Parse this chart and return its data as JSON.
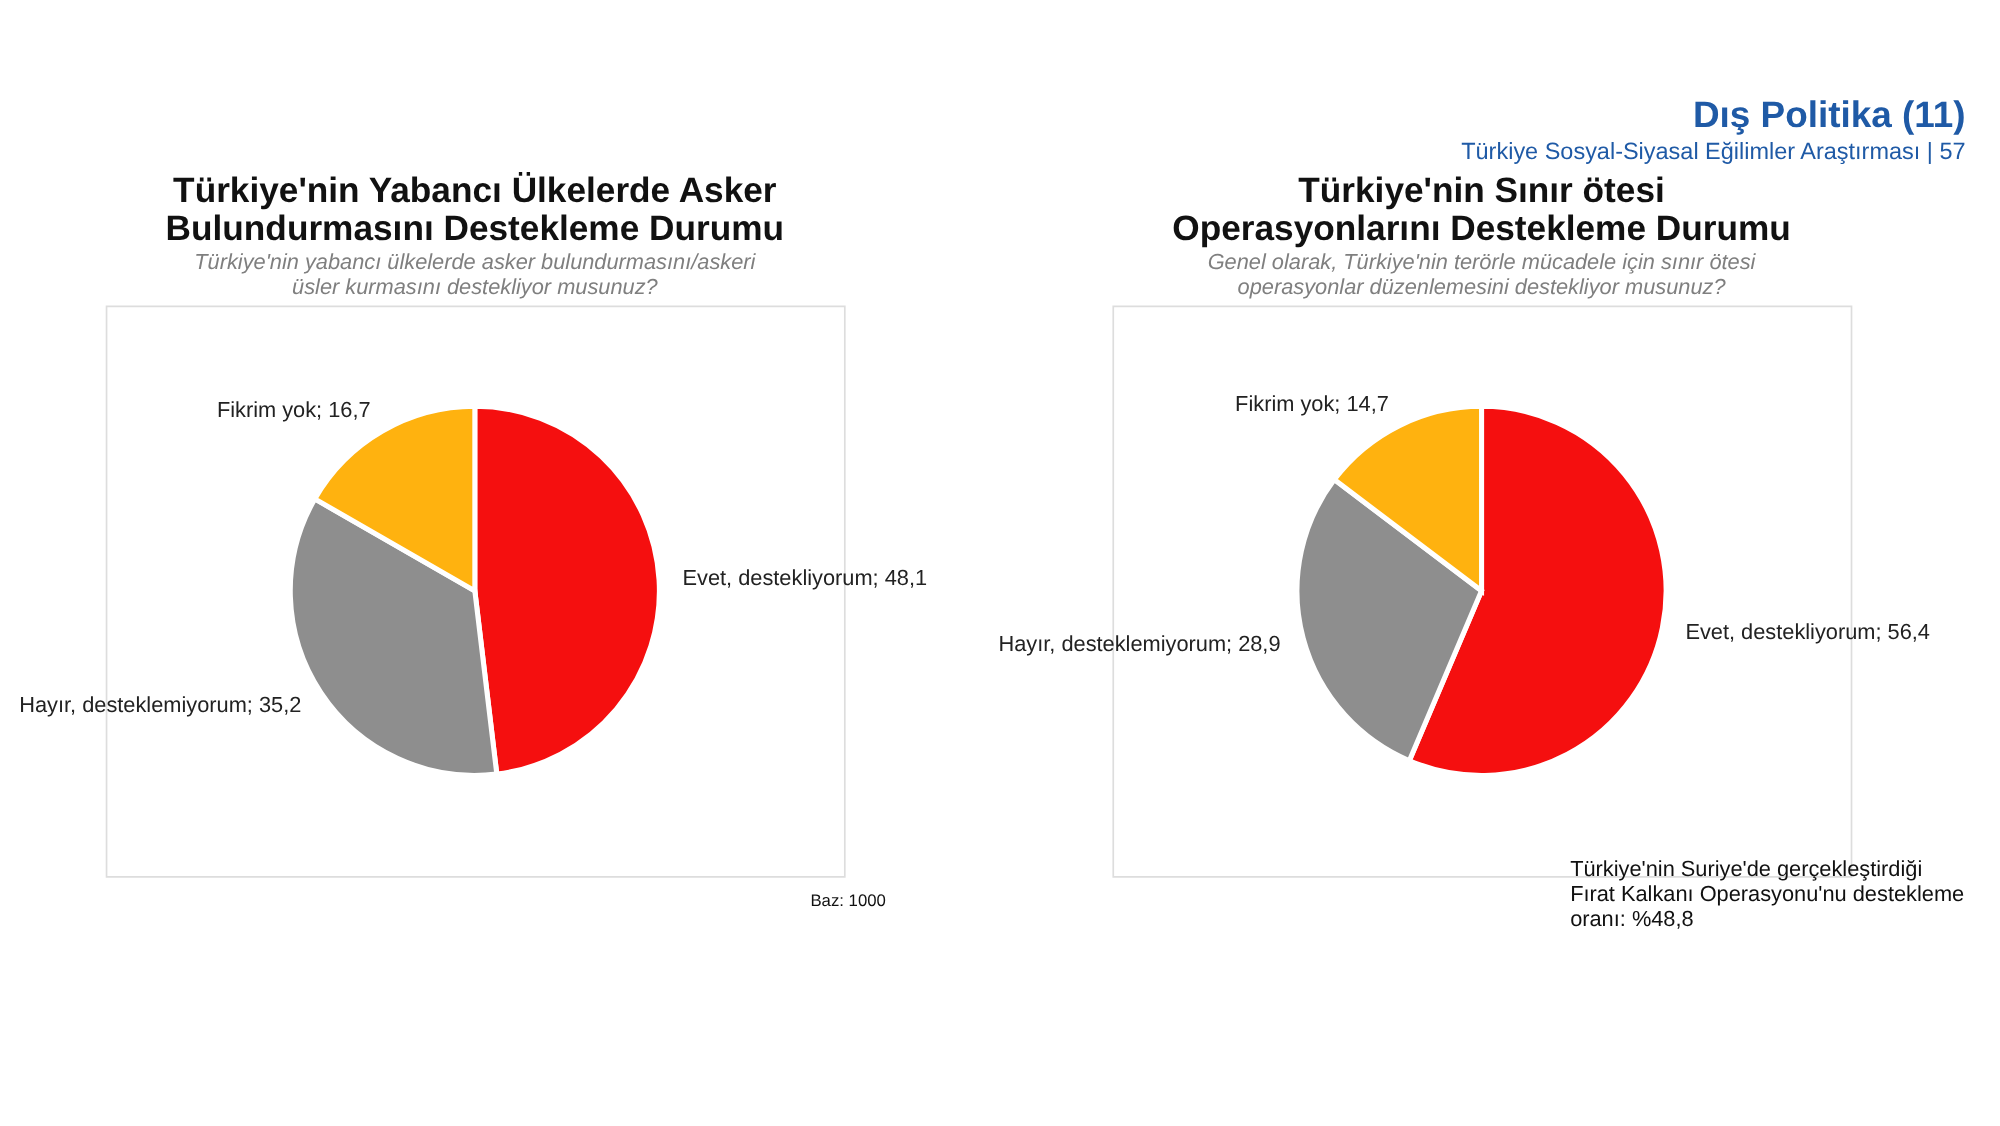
{
  "chart_data": [
    {
      "type": "pie",
      "title": "Türkiye'nin Yabancı Ülkelerde Asker Bulundurmasını Destekleme Durumu",
      "subtitle": "Türkiye'nin yabancı ülkelerde asker bulundurmasını/askeri üsler kurmasını destekliyor musunuz?",
      "categories": [
        "Evet, destekliyorum",
        "Hayır, desteklemiyorum",
        "Fikrim yok"
      ],
      "values": [
        48.1,
        35.2,
        16.7
      ],
      "value_labels": [
        "48,1",
        "35,2",
        "16,7"
      ],
      "colors": [
        "#f50f0f",
        "#8e8e8e",
        "#ffb20f"
      ],
      "annotations": [
        "Türkiye Sosyal-Siyasal Eğilimler Araştırması | 57",
        "Dış Politika (11)",
        "Baz: 1000"
      ]
    },
    {
      "type": "pie",
      "title": "Türkiye'nin Sınır ötesi Operasyonlarını Destekleme Durumu",
      "subtitle": "Genel olarak, Türkiye'nin terörle mücadele için sınır ötesi operasyonlar düzenlemesini destekliyor musunuz?",
      "categories": [
        "Evet, destekliyorum",
        "Hayır, desteklemiyorum",
        "Fikrim yok"
      ],
      "values": [
        56.4,
        28.9,
        14.7
      ],
      "value_labels": [
        "56,4",
        "28,9",
        "14,7"
      ],
      "colors": [
        "#f50f0f",
        "#8e8e8e",
        "#ffb20f"
      ],
      "annotations": [
        "Türkiye'nin Suriye'de gerçekleştirdiği Fırat Kalkanı Operasyonu'nu destekleme oranı: %48,8"
      ]
    }
  ]
}
